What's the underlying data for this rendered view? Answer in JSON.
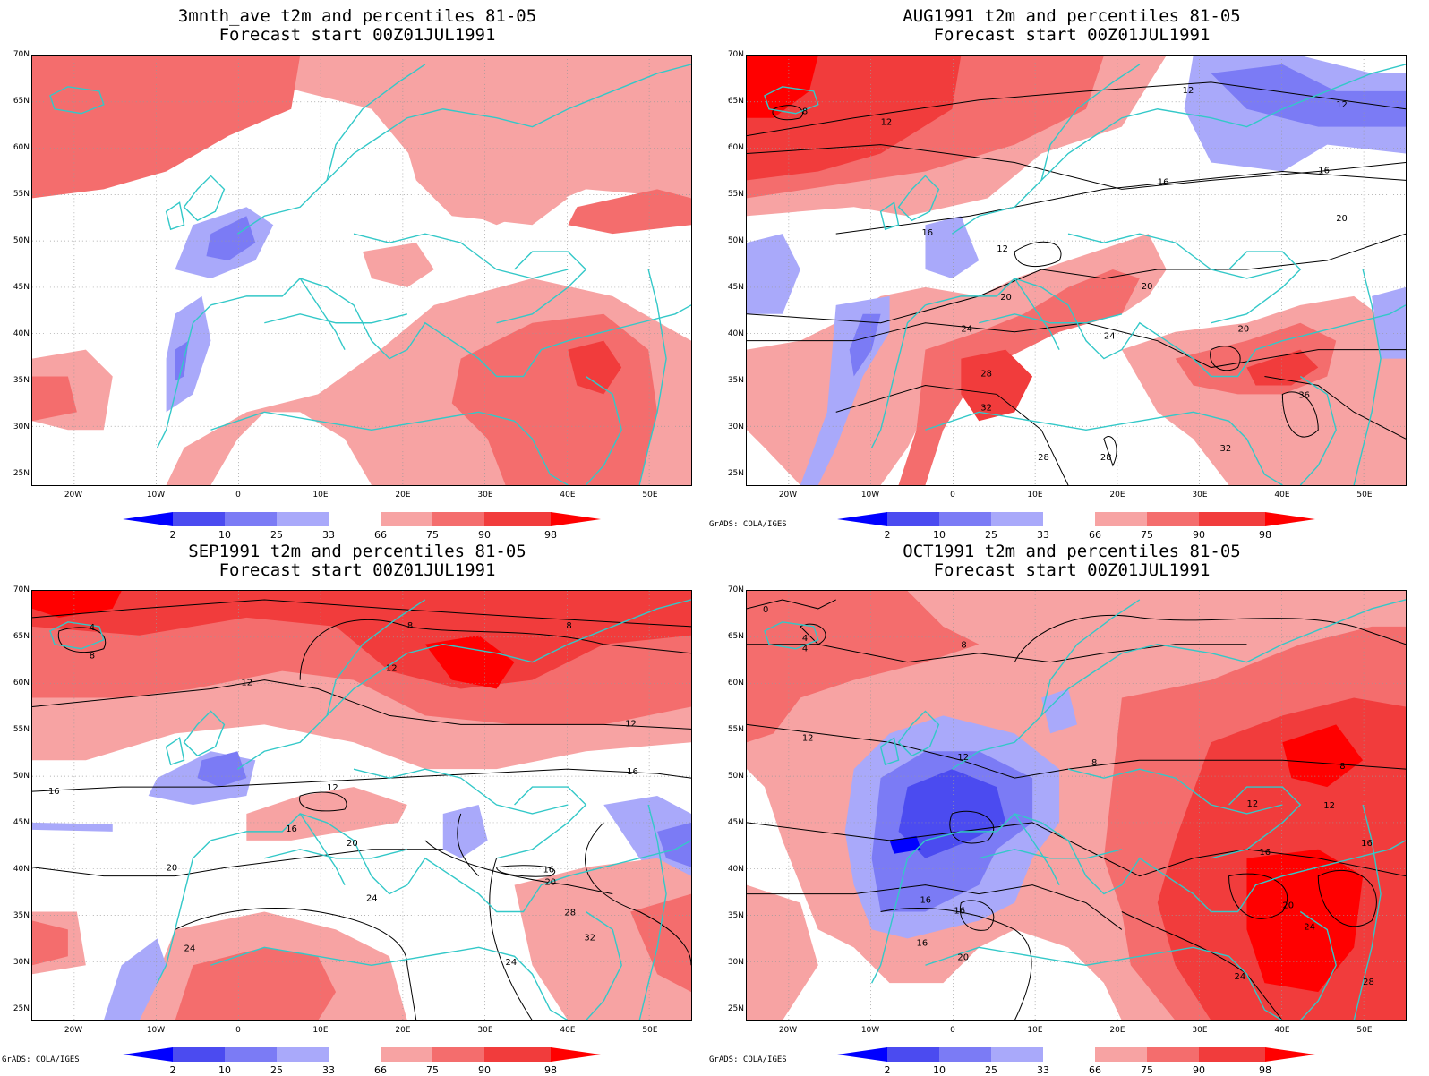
{
  "colors": {
    "p2": "#0000ff",
    "p10": "#4b4bf0",
    "p25": "#7b7bf5",
    "p33": "#a9a9fa",
    "p66": "#f7a3a3",
    "p75": "#f46d6d",
    "p90": "#f13c3c",
    "p98": "#ff0000",
    "coast": "#33c8c8",
    "grid": "#999999"
  },
  "axes": {
    "lat_ticks": [
      "70N",
      "65N",
      "60N",
      "55N",
      "50N",
      "45N",
      "40N",
      "35N",
      "30N",
      "25N"
    ],
    "lon_ticks": [
      "20W",
      "10W",
      "0",
      "10E",
      "20E",
      "30E",
      "40E",
      "50E"
    ]
  },
  "legend": {
    "labels": [
      "2",
      "10",
      "25",
      "33",
      "66",
      "75",
      "90",
      "98"
    ]
  },
  "credit": "GrADS: COLA/IGES",
  "panels": [
    {
      "title_line1": "3mnth_ave t2m and percentiles 81-05",
      "title_line2": "Forecast start 00Z01JUL1991",
      "show_credit": false,
      "contour_labels": []
    },
    {
      "title_line1": "AUG1991 t2m and percentiles 81-05",
      "title_line2": "Forecast start 00Z01JUL1991",
      "show_credit": true,
      "contour_labels": [
        "8",
        "12",
        "12",
        "12",
        "16",
        "16",
        "16",
        "20",
        "20",
        "20",
        "24",
        "24",
        "28",
        "32",
        "32",
        "36",
        "28",
        "28",
        "20",
        "12"
      ]
    },
    {
      "title_line1": "SEP1991 t2m and percentiles 81-05",
      "title_line2": "Forecast start 00Z01JUL1991",
      "show_credit": true,
      "contour_labels": [
        "4",
        "8",
        "8",
        "8",
        "12",
        "12",
        "12",
        "12",
        "16",
        "16",
        "16",
        "16",
        "20",
        "20",
        "20",
        "24",
        "24",
        "28",
        "32",
        "24"
      ]
    },
    {
      "title_line1": "OCT1991 t2m and percentiles 81-05",
      "title_line2": "Forecast start 00Z01JUL1991",
      "show_credit": true,
      "contour_labels": [
        "0",
        "4",
        "8",
        "12",
        "12",
        "16",
        "16",
        "16",
        "20",
        "8",
        "8",
        "12",
        "12",
        "16",
        "16",
        "20",
        "24",
        "24",
        "28",
        "4"
      ]
    }
  ]
}
